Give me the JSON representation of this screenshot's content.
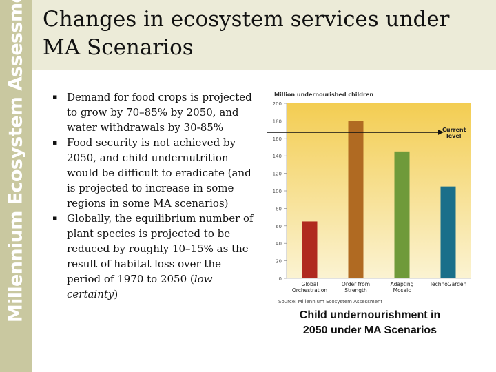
{
  "sidebar": {
    "brand": "Millennium Ecosystem Assessment"
  },
  "slide": {
    "title_line1": "Changes in ecosystem services under",
    "title_line2": "MA Scenarios"
  },
  "bullets": [
    {
      "marker": "▪",
      "text": "Demand for food crops is projected to grow by 70–85% by 2050, and water withdrawals by 30-85%"
    },
    {
      "marker": "▪",
      "text": "Food security is not achieved by 2050, and child undernutrition would be difficult to eradicate (and is projected to increase in some regions in some MA scenarios)"
    },
    {
      "marker": "▪",
      "text_before": "Globally, the equilibrium number of plant species is projected to be reduced by roughly 10–15% as the result of habitat loss over the period of 1970 to 2050 (",
      "text_italic": "low certainty",
      "text_after": ")"
    }
  ],
  "chart_caption": {
    "line1": "Child undernourishment in",
    "line2": "2050 under MA Scenarios"
  },
  "chart_data": {
    "type": "bar",
    "title": "Million undernourished children",
    "categories": [
      {
        "line1": "Global",
        "line2": "Orchestration"
      },
      {
        "line1": "Order from",
        "line2": "Strength"
      },
      {
        "line1": "Adapting",
        "line2": "Mosaic"
      },
      {
        "line1": "TechnoGarden",
        "line2": ""
      }
    ],
    "values": [
      65,
      180,
      145,
      105
    ],
    "colors": [
      "#b02a1f",
      "#b06a22",
      "#6f9a3a",
      "#1a6f8a"
    ],
    "yticks": [
      0,
      20,
      40,
      60,
      80,
      100,
      120,
      140,
      160,
      180,
      200
    ],
    "ylim": [
      0,
      200
    ],
    "reference_line": {
      "value": 167,
      "label_line1": "Current",
      "label_line2": "level"
    },
    "source": "Source: Millennium Ecosystem Assessment",
    "background_top": "#f3cd52",
    "background_bottom": "#fbf3d2"
  }
}
